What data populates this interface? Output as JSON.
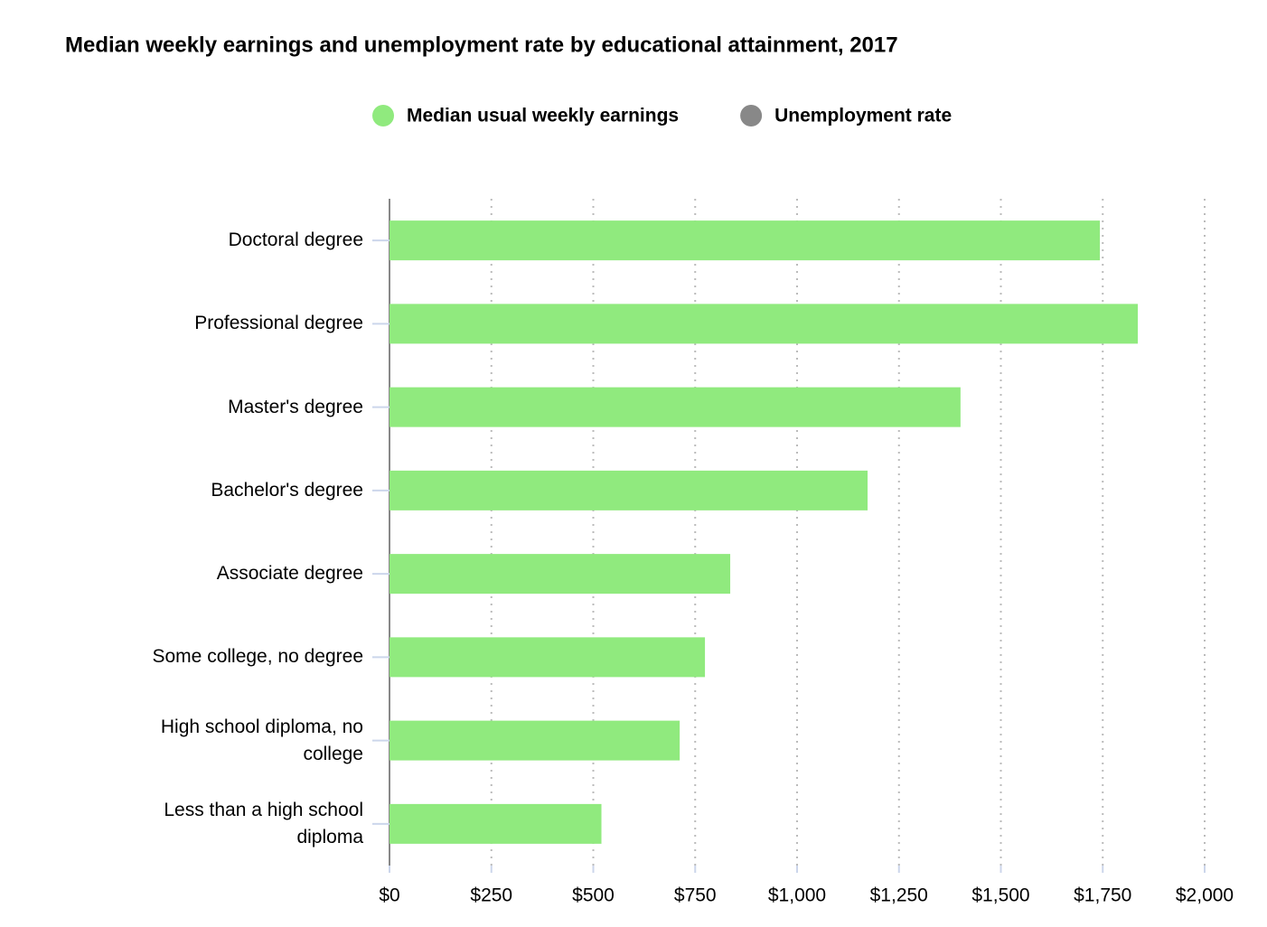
{
  "chart_data": {
    "type": "hbar",
    "title": "Median weekly earnings and unemployment rate by educational attainment, 2017",
    "categories": [
      "Doctoral degree",
      "Professional degree",
      "Master's degree",
      "Bachelor's degree",
      "Associate degree",
      "Some college, no degree",
      "High school diploma, no college",
      "Less than a high school diploma"
    ],
    "series": [
      {
        "name": "Median usual weekly earnings",
        "color": "#90ea7e",
        "values": [
          1743,
          1836,
          1401,
          1173,
          836,
          774,
          712,
          520
        ],
        "visible": true
      },
      {
        "name": "Unemployment rate",
        "color": "#888888",
        "visible": false
      }
    ],
    "xlim": [
      0,
      2000
    ],
    "xticks": [
      {
        "value": 0,
        "label": "$0"
      },
      {
        "value": 250,
        "label": "$250"
      },
      {
        "value": 500,
        "label": "$500"
      },
      {
        "value": 750,
        "label": "$750"
      },
      {
        "value": 1000,
        "label": "$1,000"
      },
      {
        "value": 1250,
        "label": "$1,250"
      },
      {
        "value": 1500,
        "label": "$1,500"
      },
      {
        "value": 1750,
        "label": "$1,750"
      },
      {
        "value": 2000,
        "label": "$2,000"
      }
    ],
    "grid": true
  }
}
